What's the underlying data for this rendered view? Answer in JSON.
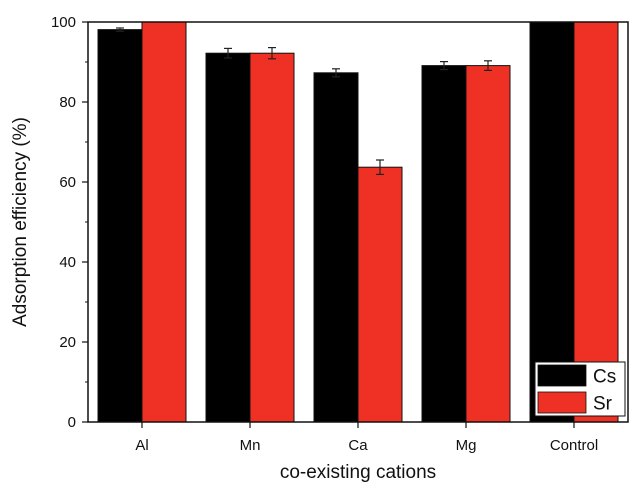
{
  "chart_data": {
    "type": "bar",
    "title": "",
    "xlabel": "co-existing cations",
    "ylabel": "Adsorption efficiency (%)",
    "categories": [
      "Al",
      "Mn",
      "Ca",
      "Mg",
      "Control"
    ],
    "series": [
      {
        "name": "Cs",
        "values": [
          98.1,
          92.2,
          87.3,
          89.1,
          100
        ],
        "errors": [
          0.4,
          1.2,
          1.0,
          1.0,
          0
        ],
        "color": "#000000"
      },
      {
        "name": "Sr",
        "values": [
          100,
          92.2,
          63.7,
          89.1,
          100
        ],
        "errors": [
          0,
          1.4,
          1.8,
          1.2,
          0
        ],
        "color": "#ee3124"
      }
    ],
    "ylim": [
      0,
      100
    ],
    "yticks": [
      0,
      20,
      40,
      60,
      80,
      100
    ],
    "yticks_minor_step": 10,
    "grid": false,
    "legend_position": "bottom-right"
  }
}
